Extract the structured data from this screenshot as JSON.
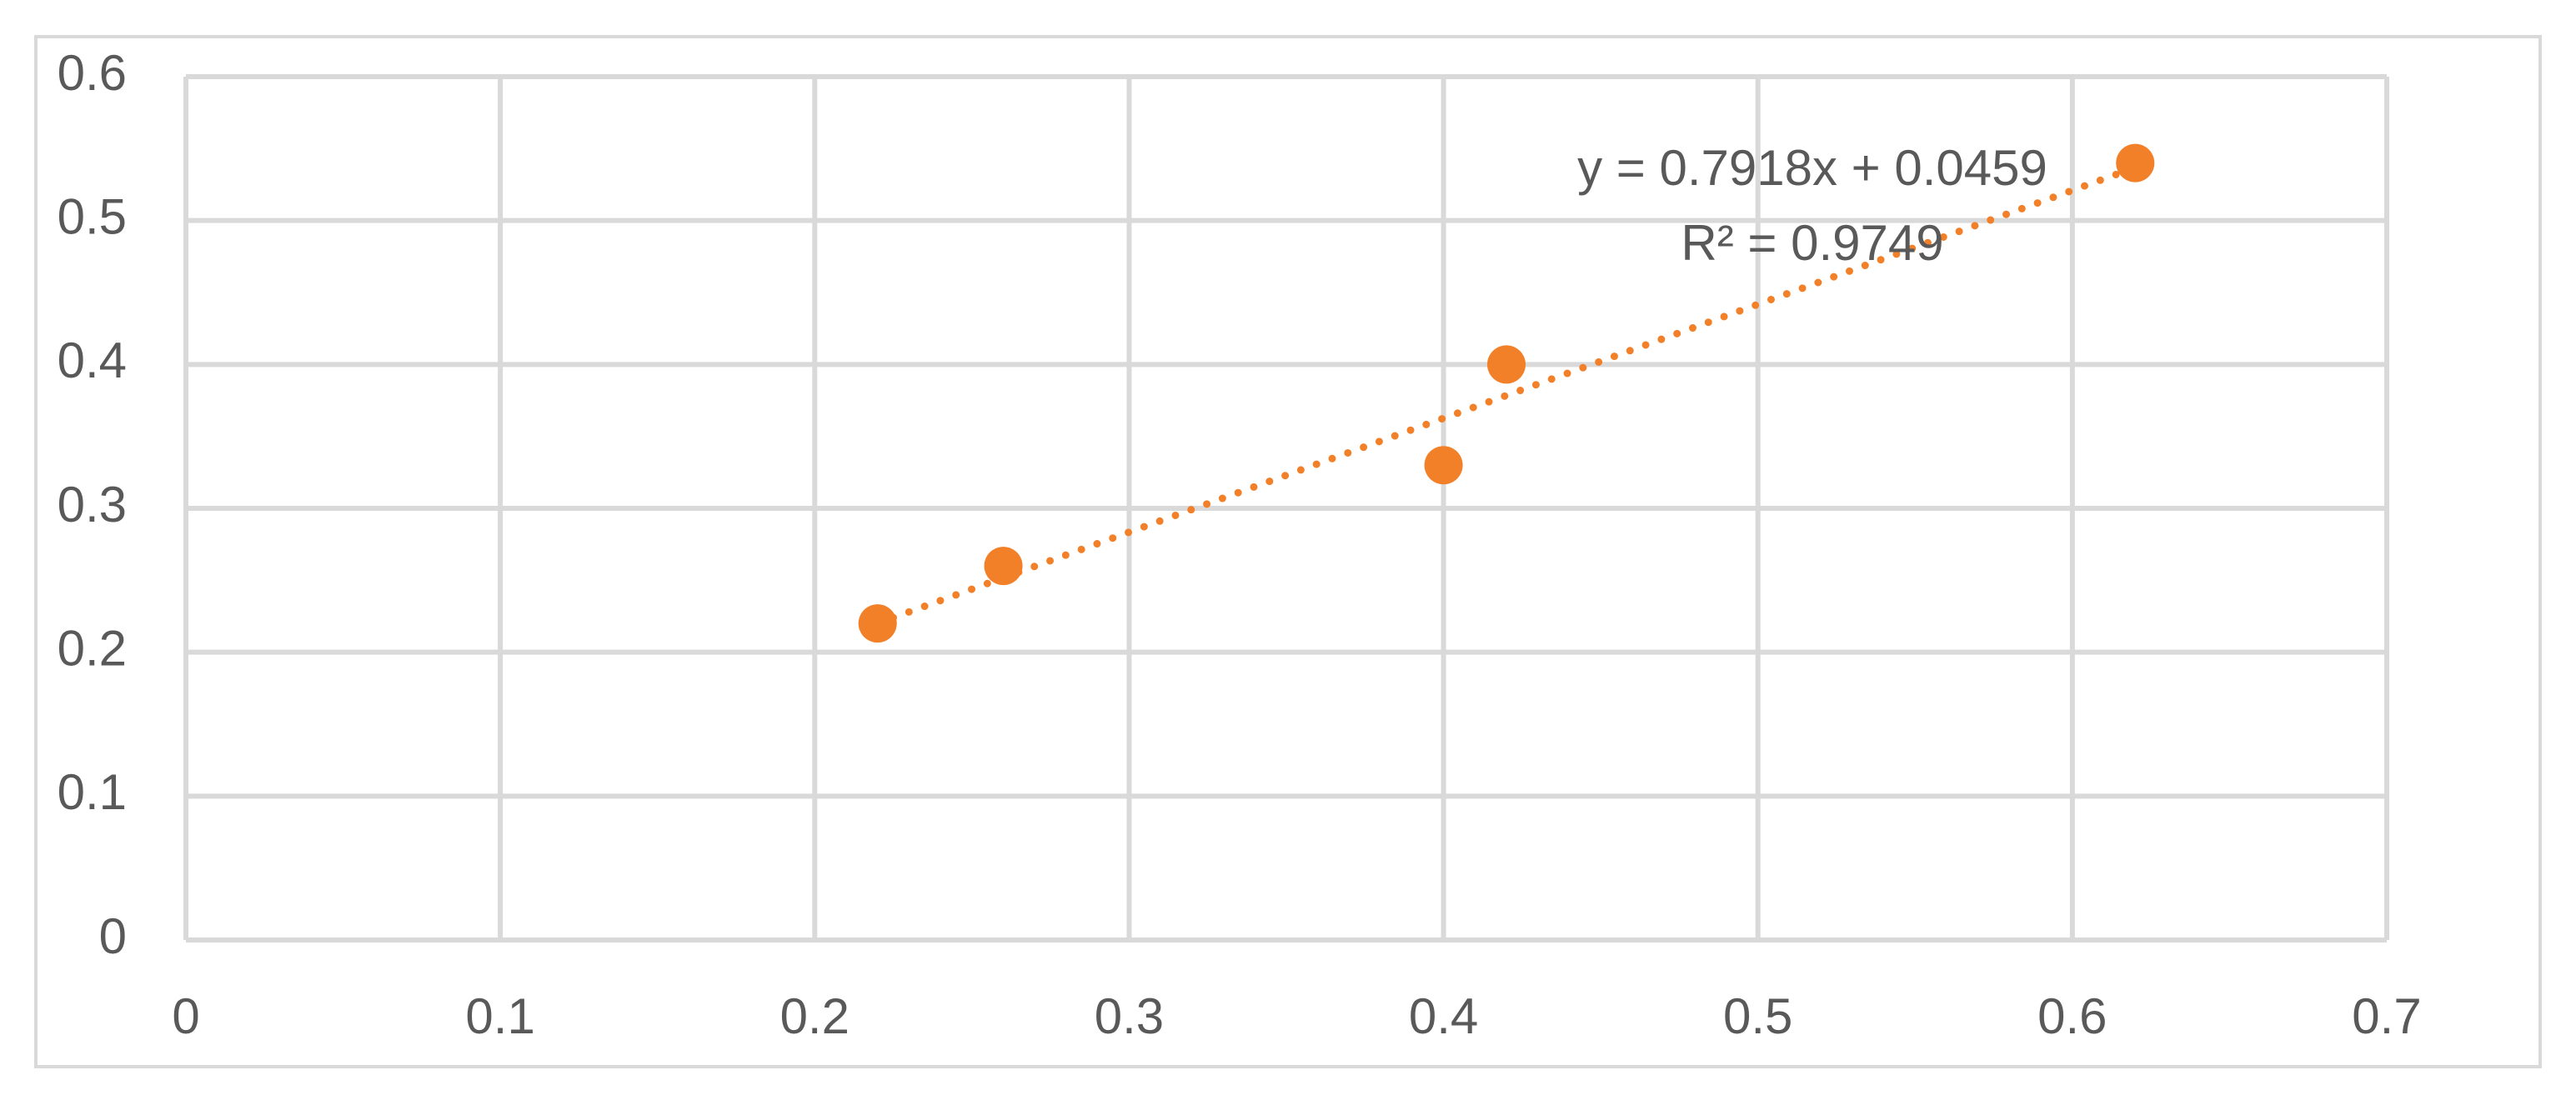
{
  "chart_data": {
    "type": "scatter",
    "x": [
      0.22,
      0.26,
      0.4,
      0.42,
      0.62
    ],
    "values": [
      0.22,
      0.26,
      0.33,
      0.4,
      0.54
    ],
    "color": "#f28028",
    "xlim": [
      0,
      0.7
    ],
    "xticks": [
      0,
      0.1,
      0.2,
      0.3,
      0.4,
      0.5,
      0.6,
      0.7
    ],
    "ylim": [
      0,
      0.6
    ],
    "yticks": [
      0,
      0.1,
      0.2,
      0.3,
      0.4,
      0.5,
      0.6
    ],
    "grid": true,
    "trendline": {
      "slope": 0.7918,
      "intercept": 0.0459,
      "equation": "y = 0.7918x + 0.0459",
      "r2": "R² = 0.9749"
    }
  }
}
